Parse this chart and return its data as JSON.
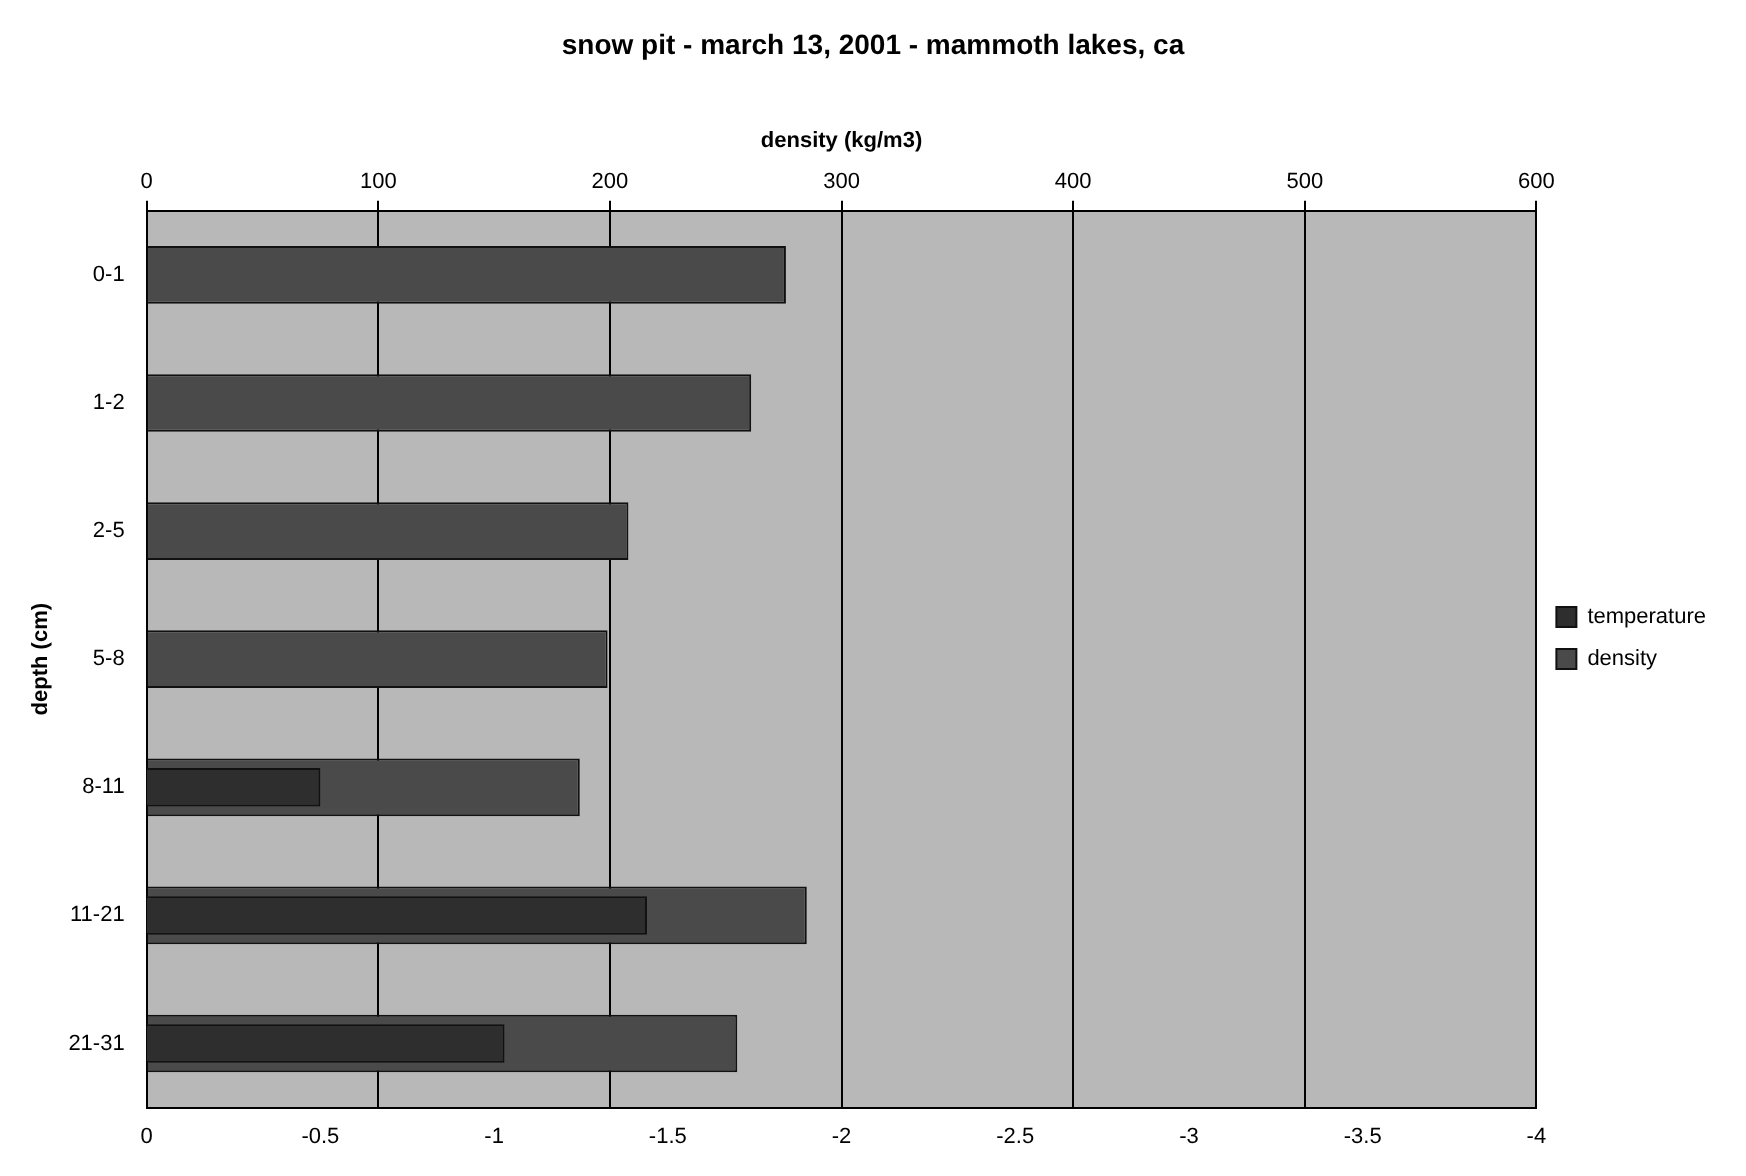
{
  "chart_data": {
    "type": "bar",
    "orientation": "horizontal",
    "title": "snow pit - march 13, 2001 - mammoth lakes, ca",
    "x2label": "density (kg/m3)",
    "ylabel": "depth (cm)",
    "categories": [
      "0-1",
      "1-2",
      "2-5",
      "5-8",
      "8-11",
      "11-21",
      "21-31"
    ],
    "series": [
      {
        "name": "density",
        "color": "#4a4a4a",
        "axis": "x2",
        "values": [
          276,
          261,
          208,
          199,
          187,
          285,
          255
        ]
      },
      {
        "name": "temperature",
        "color": "#2e2e2e",
        "values": [
          null,
          null,
          null,
          null,
          -0.5,
          -1.44,
          -1.03
        ]
      }
    ],
    "xlim": [
      0,
      -4
    ],
    "xticks": [
      0,
      -0.5,
      -1,
      -1.5,
      -2,
      -2.5,
      -3,
      -3.5,
      -4
    ],
    "x2lim": [
      0,
      600
    ],
    "x2ticks": [
      0,
      100,
      200,
      300,
      400,
      500,
      600
    ],
    "grid": "x2",
    "legend": "right"
  }
}
